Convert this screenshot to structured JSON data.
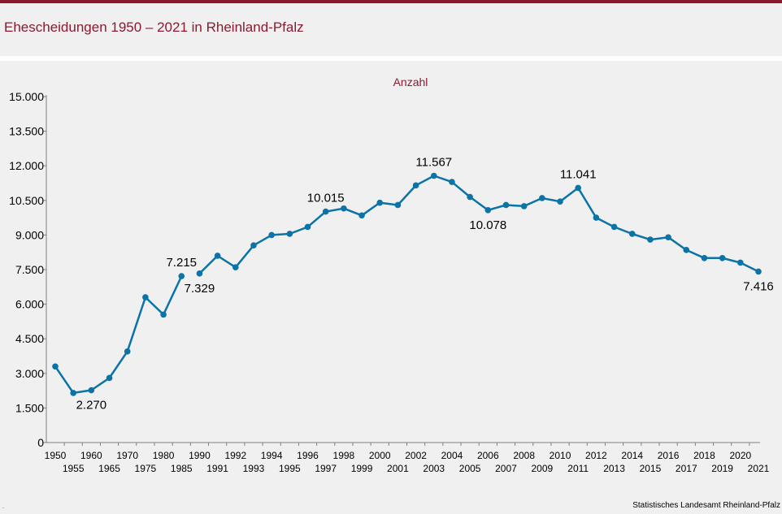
{
  "title": "Ehescheidungen 1950 – 2021 in Rheinland-Pfalz",
  "source": "Statistisches Landesamt Rheinland-Pfalz",
  "footnote_mark": ".",
  "colors": {
    "line": "#0b73a6",
    "title": "#8b1a2f",
    "axis": "#808080"
  },
  "chart_data": {
    "type": "line",
    "title": "Ehescheidungen 1950 – 2021 in Rheinland-Pfalz",
    "ylabel": "Anzahl",
    "xlabel": "",
    "ylim": [
      0,
      15000
    ],
    "grid": false,
    "y_ticks": [
      "0",
      "1.500",
      "3.000",
      "4.500",
      "6.000",
      "7.500",
      "9.000",
      "10.500",
      "12.000",
      "13.500",
      "15.000"
    ],
    "y_tick_values": [
      0,
      1500,
      3000,
      4500,
      6000,
      7500,
      9000,
      10500,
      12000,
      13500,
      15000
    ],
    "x_labels": [
      "1950",
      "1955",
      "1960",
      "1965",
      "1970",
      "1975",
      "1980",
      "1985",
      "1990",
      "1991",
      "1992",
      "1993",
      "1994",
      "1995",
      "1996",
      "1997",
      "1998",
      "1999",
      "2000",
      "2001",
      "2002",
      "2003",
      "2004",
      "2005",
      "2006",
      "2007",
      "2008",
      "2009",
      "2010",
      "2011",
      "2012",
      "2013",
      "2014",
      "2015",
      "2016",
      "2017",
      "2018",
      "2019",
      "2020",
      "2021"
    ],
    "series": [
      {
        "segments": [
          {
            "x": [
              "1950",
              "1955",
              "1960",
              "1965",
              "1970",
              "1975",
              "1980",
              "1985"
            ],
            "values": [
              3300,
              2150,
              2270,
              2800,
              3950,
              6300,
              5550,
              7215
            ]
          },
          {
            "x": [
              "1990",
              "1991",
              "1992",
              "1993",
              "1994",
              "1995",
              "1996",
              "1997",
              "1998",
              "1999",
              "2000",
              "2001",
              "2002",
              "2003",
              "2004",
              "2005",
              "2006",
              "2007",
              "2008",
              "2009",
              "2010",
              "2011",
              "2012",
              "2013",
              "2014",
              "2015",
              "2016",
              "2017",
              "2018",
              "2019",
              "2020",
              "2021"
            ],
            "values": [
              7329,
              8100,
              7600,
              8550,
              9000,
              9050,
              9350,
              10015,
              10150,
              9850,
              10400,
              10300,
              11150,
              11567,
              11300,
              10650,
              10078,
              10300,
              10250,
              10600,
              10450,
              11041,
              9750,
              9350,
              9050,
              8800,
              8900,
              8350,
              8000,
              8000,
              7800,
              7416
            ]
          }
        ]
      }
    ],
    "data_labels": [
      {
        "x": "1960",
        "text": "2.270",
        "pos": "below"
      },
      {
        "x": "1985",
        "text": "7.215",
        "pos": "above"
      },
      {
        "x": "1990",
        "text": "7.329",
        "pos": "below"
      },
      {
        "x": "1997",
        "text": "10.015",
        "pos": "above"
      },
      {
        "x": "2003",
        "text": "11.567",
        "pos": "above"
      },
      {
        "x": "2006",
        "text": "10.078",
        "pos": "below"
      },
      {
        "x": "2011",
        "text": "11.041",
        "pos": "above"
      },
      {
        "x": "2021",
        "text": "7.416",
        "pos": "below"
      }
    ]
  }
}
